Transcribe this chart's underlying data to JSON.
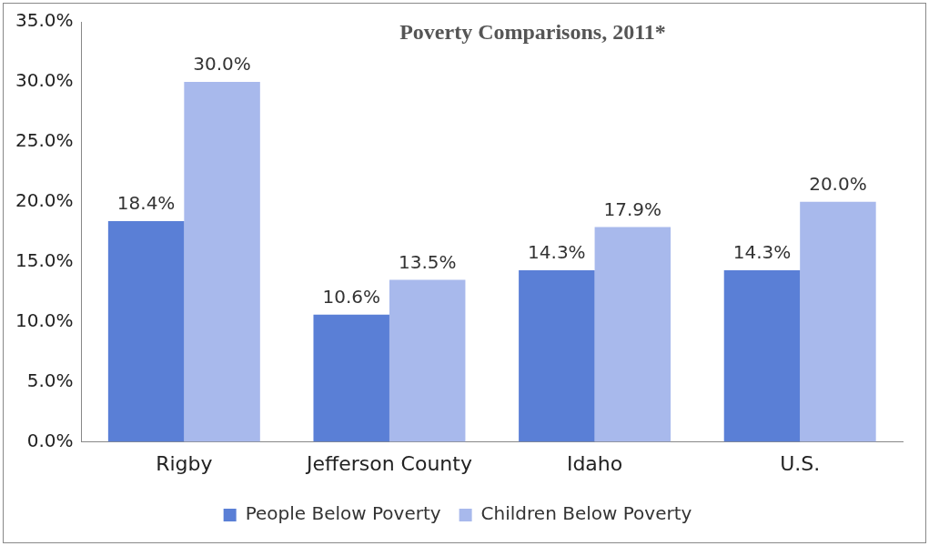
{
  "chart_data": {
    "type": "bar",
    "title": "Poverty Comparisons, 2011*",
    "categories": [
      "Rigby",
      "Jefferson County",
      "Idaho",
      "U.S."
    ],
    "series": [
      {
        "name": "People Below Poverty",
        "color": "#5a7fd6",
        "values": [
          18.4,
          10.6,
          14.3,
          14.3
        ],
        "value_labels": [
          "18.4%",
          "10.6%",
          "14.3%",
          "14.3%"
        ]
      },
      {
        "name": "Children Below Poverty",
        "color": "#a8b9ec",
        "values": [
          30.0,
          13.5,
          17.9,
          20.0
        ],
        "value_labels": [
          "30.0%",
          "13.5%",
          "17.9%",
          "20.0%"
        ]
      }
    ],
    "ylim": [
      0,
      35
    ],
    "yticks": [
      {
        "value": 0,
        "label": "0.0%"
      },
      {
        "value": 5,
        "label": "5.0%"
      },
      {
        "value": 10,
        "label": "10.0%"
      },
      {
        "value": 15,
        "label": "15.0%"
      },
      {
        "value": 20,
        "label": "20.0%"
      },
      {
        "value": 25,
        "label": "25.0%"
      },
      {
        "value": 30,
        "label": "30.0%"
      },
      {
        "value": 35,
        "label": "35.0%"
      }
    ],
    "grid": false,
    "legend": "bottom"
  }
}
